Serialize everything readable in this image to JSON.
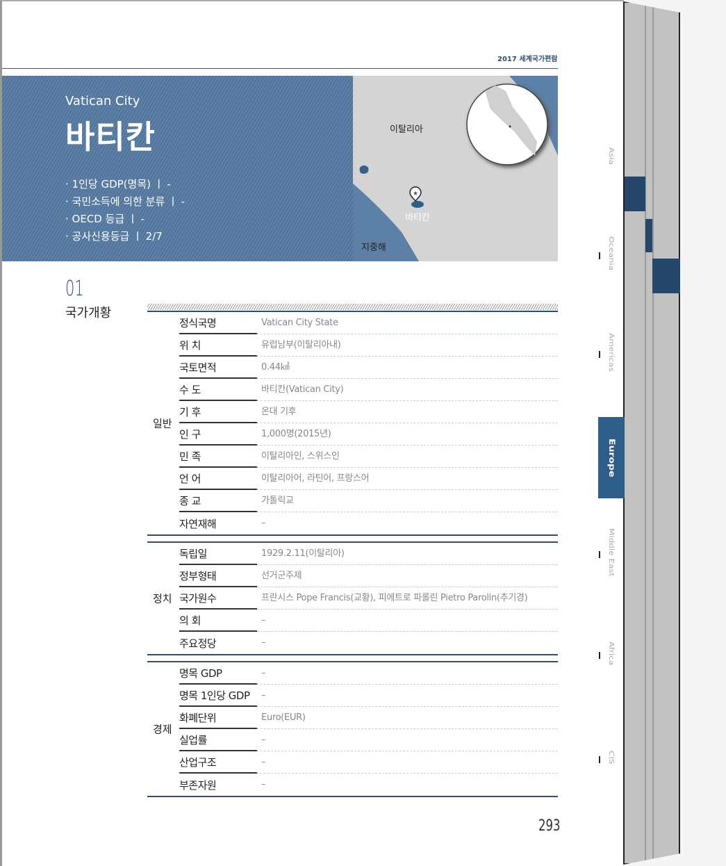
{
  "header": "2017 세계국가편람",
  "country": {
    "english": "Vatican City",
    "korean": "바티칸"
  },
  "facts": [
    "· 1인당 GDP(명목) ㅣ -",
    "· 국민소득에 의한 분류 ㅣ -",
    "· OECD 등급 ㅣ -",
    "· 공사신용등급 ㅣ 2/7"
  ],
  "map": {
    "italy": "이탈리아",
    "vatican": "바티칸",
    "sea": "지중해"
  },
  "section": {
    "number": "01",
    "title": "국가개황"
  },
  "groups": [
    {
      "label": "일반",
      "rows": [
        [
          "정식국명",
          "Vatican City State"
        ],
        [
          "위 치",
          "유럽남부(이탈리아내)"
        ],
        [
          "국토면적",
          "0.44㎢"
        ],
        [
          "수 도",
          "바티칸(Vatican City)"
        ],
        [
          "기 후",
          "온대 기후"
        ],
        [
          "인 구",
          "1,000명(2015년)"
        ],
        [
          "민 족",
          "이탈리아인, 스위스인"
        ],
        [
          "언 어",
          "이탈리아어, 라틴어, 프랑스어"
        ],
        [
          "종 교",
          "가톨릭교"
        ],
        [
          "자연재해",
          "–"
        ]
      ]
    },
    {
      "label": "정치",
      "rows": [
        [
          "독립일",
          "1929.2.11(이탈리아)"
        ],
        [
          "정부형태",
          "선거군주제"
        ],
        [
          "국가원수",
          "프란시스 Pope Francis(교황), 피에트로 파롤린 Pietro Parolin(추기경)"
        ],
        [
          "의 회",
          "–"
        ],
        [
          "주요정당",
          "–"
        ]
      ]
    },
    {
      "label": "경제",
      "rows": [
        [
          "명목 GDP",
          "–"
        ],
        [
          "명목 1인당 GDP",
          "–"
        ],
        [
          "화폐단위",
          "Euro(EUR)"
        ],
        [
          "실업률",
          "–"
        ],
        [
          "산업구조",
          "–"
        ],
        [
          "부존자원",
          "–"
        ]
      ]
    }
  ],
  "page_number": "293",
  "tabs": [
    "Asia",
    "Oceania",
    "Americas",
    "Europe",
    "Middle East",
    "Africa",
    "CIS"
  ],
  "active_tab": "Europe",
  "colors": {
    "accent": "#2f5d8a",
    "banner": "#5d80a6"
  }
}
